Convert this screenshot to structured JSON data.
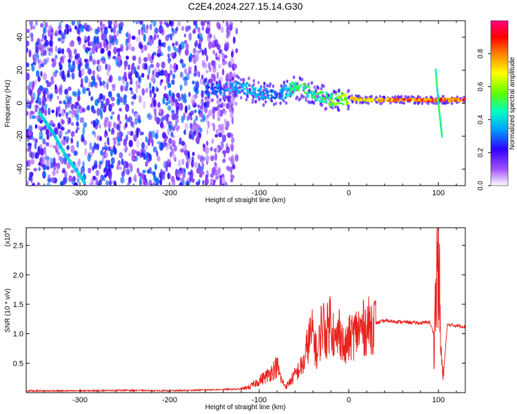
{
  "title": "C2E4.2024.227.15.14.G30",
  "chart_data": [
    {
      "type": "heatmap",
      "xlabel": "Height of straight line (km)",
      "ylabel": "Frequency (Hz)",
      "xlim": [
        -360,
        130
      ],
      "ylim": [
        -50,
        50
      ],
      "x_ticks": [
        -300,
        -200,
        -100,
        0,
        100
      ],
      "x_tick_labels": [
        "-300",
        "-200",
        "-100",
        "0",
        "100"
      ],
      "y_ticks": [
        -40,
        -20,
        0,
        20,
        40
      ],
      "y_tick_labels": [
        "-40",
        "-20",
        "0",
        "20",
        "40"
      ],
      "colorbar": {
        "label": "Normalized spectral amplitude",
        "range": [
          0,
          1
        ],
        "ticks": [
          0.0,
          0.2,
          0.4,
          0.6,
          0.8
        ],
        "tick_labels": [
          "0.0",
          "0.2",
          "0.4",
          "0.6",
          "0.8"
        ],
        "colors": [
          "#ffffff",
          "#8000ff",
          "#0000ff",
          "#00ffff",
          "#00ff00",
          "#ffff00",
          "#ff8000",
          "#ff0000",
          "#ff0080"
        ]
      },
      "features": [
        {
          "name": "noise-field",
          "x_range": [
            -360,
            -125
          ],
          "y_range": [
            -50,
            50
          ],
          "level": 0.2,
          "color": "#7b2bff"
        },
        {
          "name": "diagonal-streak",
          "x": [
            -345,
            -330,
            -318,
            -305,
            -295
          ],
          "y": [
            -6,
            -18,
            -30,
            -40,
            -48
          ],
          "level": 0.35
        },
        {
          "name": "main-signal",
          "x": [
            -160,
            -140,
            -120,
            -100,
            -80,
            -60,
            -40,
            -20,
            0,
            20,
            60,
            100,
            130
          ],
          "y": [
            8,
            8,
            10,
            6,
            4,
            10,
            6,
            2,
            3,
            2,
            2,
            2,
            2
          ],
          "level": [
            0.3,
            0.35,
            0.4,
            0.4,
            0.3,
            0.55,
            0.5,
            0.6,
            0.7,
            0.8,
            0.9,
            0.95,
            0.9
          ]
        },
        {
          "name": "spike-100",
          "x": [
            97,
            100,
            104
          ],
          "y": [
            20,
            0,
            -20
          ],
          "level": 0.4
        }
      ]
    },
    {
      "type": "line",
      "xlabel": "Height of straight line (km)",
      "ylabel": "SNR (10 * v/v)",
      "yscale_label": "(x10",
      "yscale_exp": "4",
      "xlim": [
        -360,
        130
      ],
      "ylim": [
        0,
        2.8
      ],
      "x_ticks": [
        -300,
        -200,
        -100,
        0,
        100
      ],
      "x_tick_labels": [
        "-300",
        "-200",
        "-100",
        "0",
        "100"
      ],
      "y_ticks": [
        0.5,
        1.0,
        1.5,
        2.0,
        2.5
      ],
      "y_tick_labels": [
        "0.5",
        "1.0",
        "1.5",
        "2.0",
        "2.5"
      ],
      "series": [
        {
          "color": "#e8221e",
          "x": [
            -360,
            -300,
            -250,
            -200,
            -150,
            -120,
            -110,
            -100,
            -90,
            -80,
            -75,
            -70,
            -60,
            -50,
            -45,
            -40,
            -35,
            -30,
            -25,
            -20,
            -15,
            -10,
            -5,
            0,
            10,
            20,
            30,
            40,
            60,
            80,
            90,
            95,
            98,
            100,
            102,
            105,
            110,
            120,
            130
          ],
          "y": [
            0.03,
            0.03,
            0.04,
            0.03,
            0.05,
            0.06,
            0.1,
            0.2,
            0.3,
            0.45,
            0.2,
            0.1,
            0.3,
            0.5,
            0.9,
            1.0,
            0.6,
            1.2,
            1.0,
            1.3,
            0.8,
            1.1,
            0.7,
            0.9,
            1.05,
            1.12,
            1.18,
            1.22,
            1.2,
            1.18,
            1.2,
            1.0,
            1.8,
            2.8,
            1.0,
            0.2,
            1.15,
            1.14,
            1.12
          ]
        }
      ]
    }
  ]
}
